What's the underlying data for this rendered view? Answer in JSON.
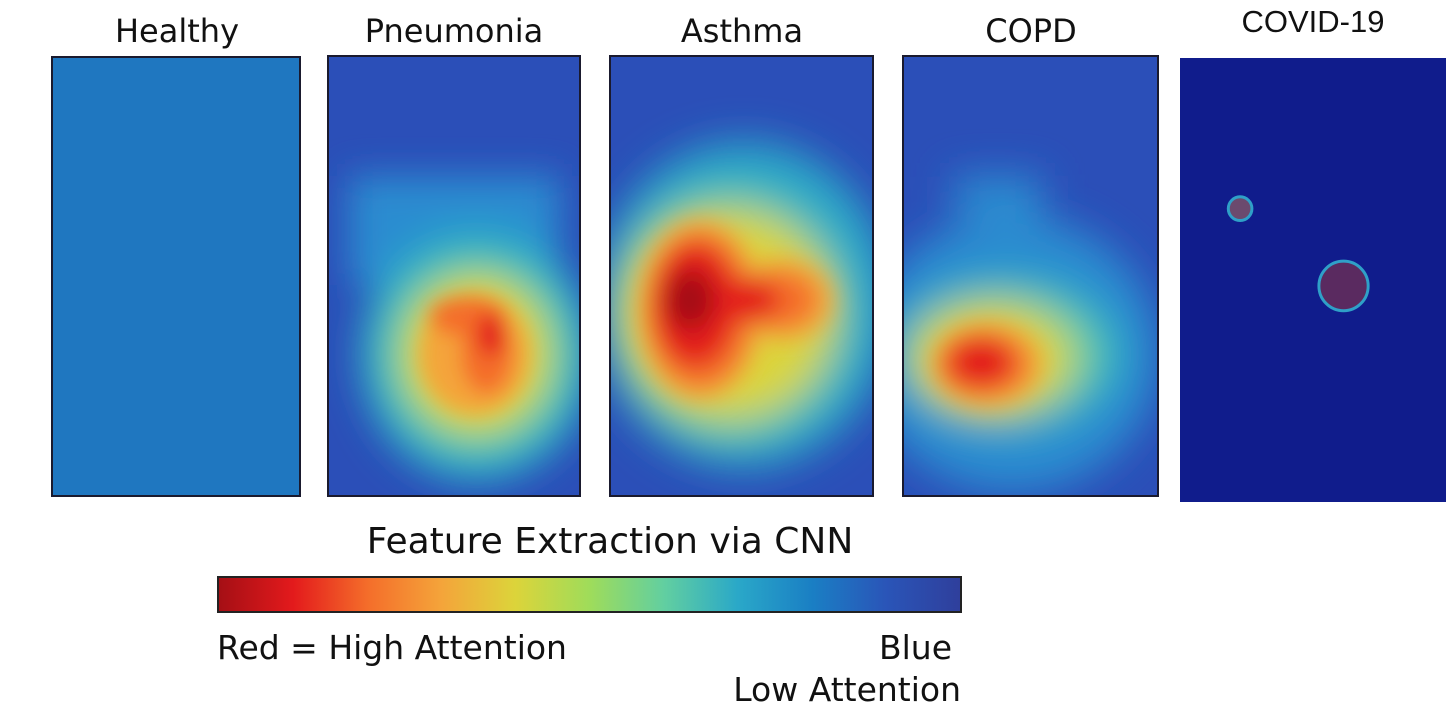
{
  "panels": [
    {
      "id": "healthy",
      "title": "Healthy"
    },
    {
      "id": "pneumonia",
      "title": "Pneumonia"
    },
    {
      "id": "asthma",
      "title": "Asthma"
    },
    {
      "id": "copd",
      "title": "COPD"
    },
    {
      "id": "covid",
      "title": "COVID-19"
    }
  ],
  "caption": "Feature Extraction via CNN",
  "colorbar": {
    "high_label": "Red = High Attention",
    "low_label_line1": "Blue",
    "low_label_line2": "Low Attention",
    "stops": [
      "#a50f15",
      "#e31a1c",
      "#f46d2a",
      "#f4a43a",
      "#dcd43a",
      "#9fdc5a",
      "#62cfa0",
      "#2aa8c8",
      "#1a7fc4",
      "#2a55b8",
      "#2f3f9c"
    ]
  },
  "colors": {
    "healthy_fill": "#1f77c0",
    "heatmap_base": "#2b4fb8",
    "covid_fill": "#101c8c",
    "covid_spot": "#6b4a6e"
  }
}
